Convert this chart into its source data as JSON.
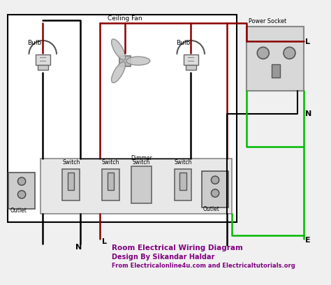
{
  "title": "Room Electrical Wiring Diagram",
  "subtitle1": "Design By Sikandar Haldar",
  "subtitle2": "From Electricalonline4u.com and Electricaltutorials.org",
  "text_color": "#800080",
  "bg_color": "#f0f0f0",
  "wire_red": "#8B0000",
  "wire_black": "#000000",
  "wire_green": "#00bb00",
  "labels": {
    "bulb_left": "Bulb",
    "bulb_right": "Bulb",
    "ceiling_fan": "Ceiling Fan",
    "power_socket": "Power Socket",
    "switch1": "Switch",
    "switch2": "Switch",
    "dimmer_line1": "Dimmer",
    "dimmer_line2": "Switch",
    "switch3": "Switch",
    "outlet_right": "Outlet",
    "outlet_left": "Outlet",
    "N": "N",
    "L": "L",
    "E": "E"
  }
}
